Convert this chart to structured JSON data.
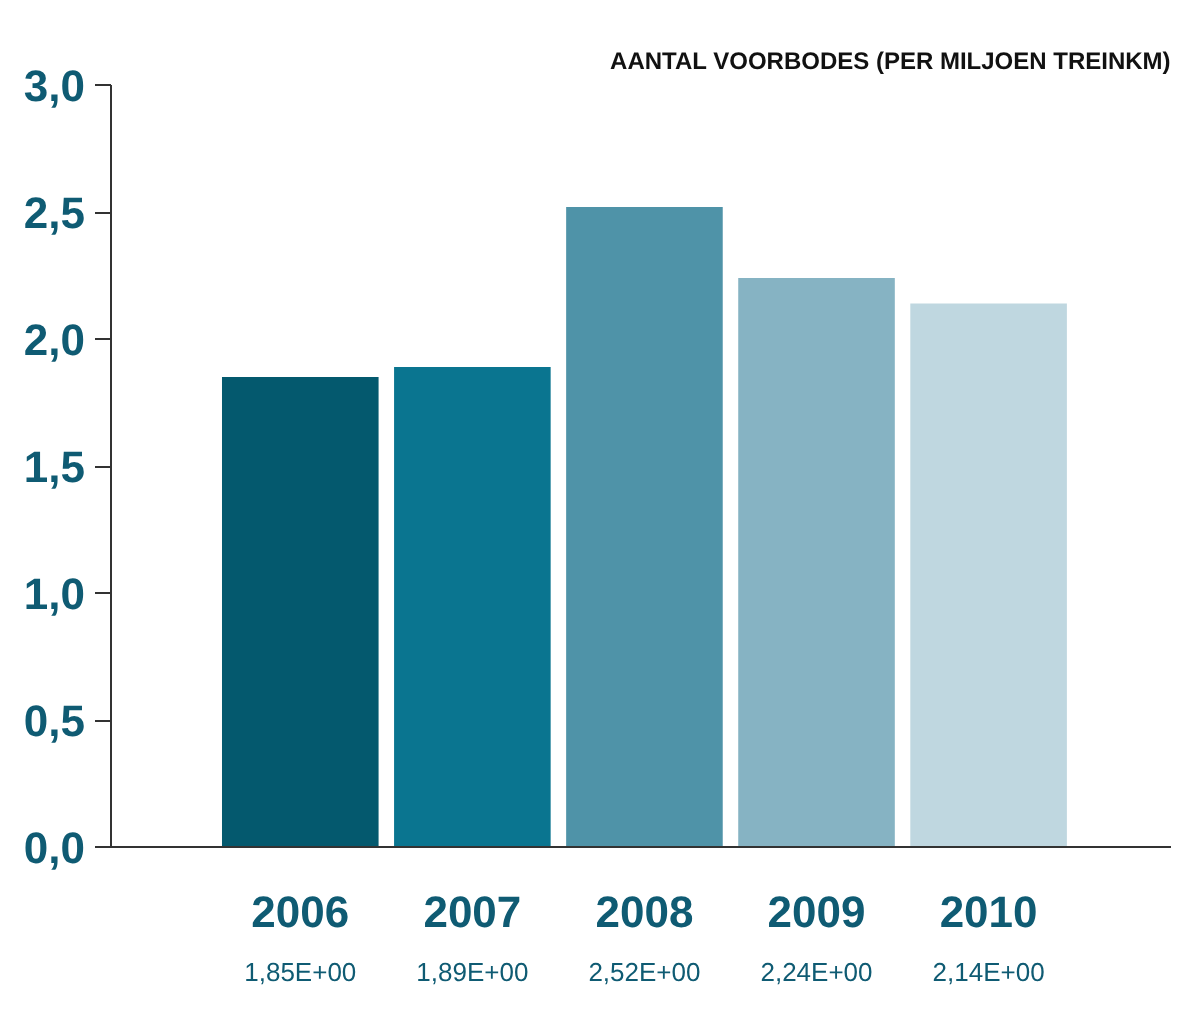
{
  "chart_data": {
    "type": "bar",
    "title": "AANTAL VOORBODES (PER MILJOEN TREINKM)",
    "categories": [
      "2006",
      "2007",
      "2008",
      "2009",
      "2010"
    ],
    "values": [
      1.85,
      1.89,
      2.52,
      2.24,
      2.14
    ],
    "colors": [
      "#04596e",
      "#0a7590",
      "#4f93a8",
      "#86b3c3",
      "#bfd7e0"
    ],
    "value_labels": [
      "1,85E+00",
      "1,89E+00",
      "2,52E+00",
      "2,24E+00",
      "2,14E+00"
    ],
    "ylim": [
      0,
      3
    ],
    "yticks": [
      {
        "value": 0,
        "label": "0,0"
      },
      {
        "value": 0.5,
        "label": "0,5"
      },
      {
        "value": 1,
        "label": "1,0"
      },
      {
        "value": 1.5,
        "label": "1,5"
      },
      {
        "value": 2,
        "label": "2,0"
      },
      {
        "value": 2.5,
        "label": "2,5"
      },
      {
        "value": 3,
        "label": "3,0"
      }
    ],
    "grid": false
  }
}
